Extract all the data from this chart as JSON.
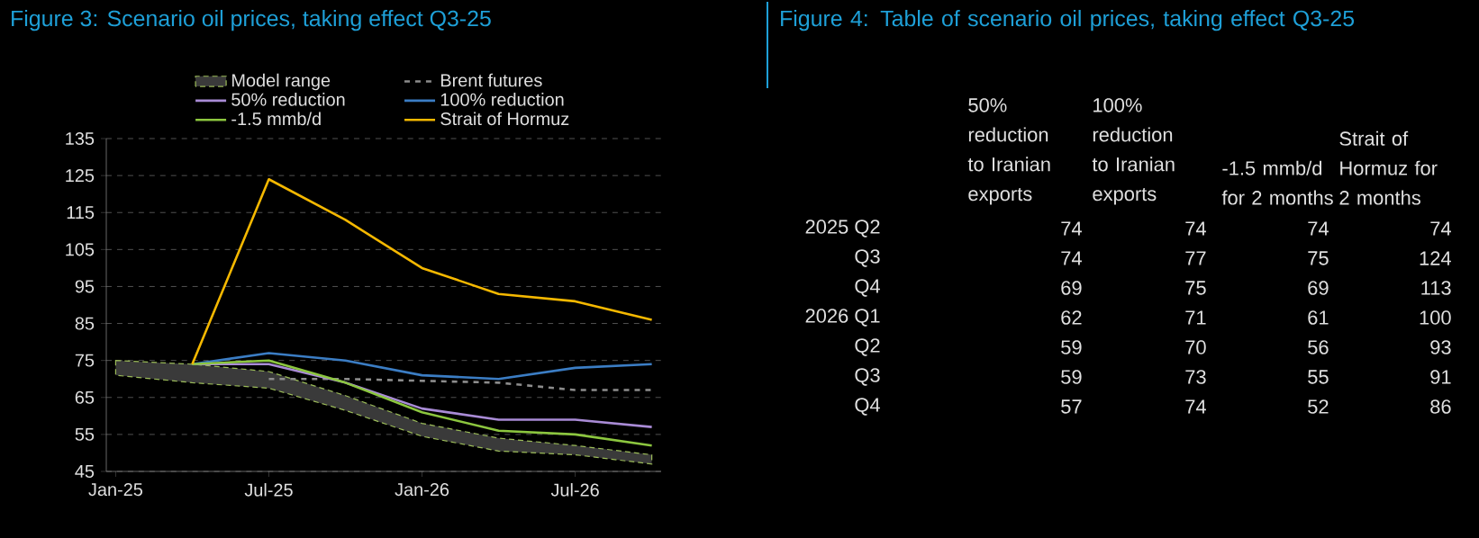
{
  "chart_data": [
    {
      "type": "line",
      "title": "Figure 3: Scenario oil prices, taking effect Q3-25",
      "x": [
        "2025-01",
        "2025-04",
        "2025-07",
        "2025-10",
        "2026-01",
        "2026-04",
        "2026-07",
        "2026-10"
      ],
      "xlim": [
        "2024-12-20",
        "2026-10-12"
      ],
      "xticks": [
        {
          "value": "2025-01",
          "label": "Jan-25"
        },
        {
          "value": "2025-07",
          "label": "Jul-25"
        },
        {
          "value": "2026-01",
          "label": "Jan-26"
        },
        {
          "value": "2026-07",
          "label": "Jul-26"
        }
      ],
      "ylim": [
        45,
        135
      ],
      "yticks": [
        45,
        55,
        65,
        75,
        85,
        95,
        105,
        115,
        125,
        135
      ],
      "grid": "y",
      "legend": "top",
      "series": [
        {
          "name": "Model range",
          "type": "area",
          "color": "#3a3a3a",
          "values": [
            null,
            null,
            null,
            null,
            null,
            null,
            null,
            null
          ],
          "lower": [
            71,
            69,
            67.5,
            61.5,
            54.5,
            50.5,
            49.5,
            47
          ],
          "upper": [
            75,
            74,
            72,
            65.5,
            58,
            54,
            52,
            49.5
          ]
        },
        {
          "name": "Brent futures",
          "type": "line",
          "color": "#8c8c8c",
          "line_style": "dashed",
          "values": [
            null,
            null,
            70,
            70,
            69.5,
            69,
            67,
            67
          ]
        },
        {
          "name": "50% reduction",
          "type": "line",
          "color": "#a98bd6",
          "values": [
            null,
            74,
            74,
            69,
            62,
            59,
            59,
            57
          ]
        },
        {
          "name": "100% reduction",
          "type": "line",
          "color": "#3b7dc4",
          "values": [
            null,
            74,
            77,
            75,
            71,
            70,
            73,
            74
          ]
        },
        {
          "name": "-1.5 mmb/d",
          "type": "line",
          "color": "#8cc63f",
          "values": [
            null,
            74,
            75,
            69,
            61,
            56,
            55,
            52
          ]
        },
        {
          "name": "Strait of Hormuz",
          "type": "line",
          "color": "#f5b800",
          "values": [
            null,
            74,
            124,
            113,
            100,
            93,
            91,
            86
          ]
        }
      ]
    },
    {
      "type": "other",
      "title": "Figure 4: Table of scenario oil prices, taking effect Q3-25",
      "categories": [
        "2025 Q2",
        "Q3",
        "Q4",
        "2026 Q1",
        "Q2",
        "Q3",
        "Q4"
      ],
      "data_labels": true,
      "series": [
        {
          "name": "50% reduction to Iranian exports",
          "values": [
            74,
            74,
            69,
            62,
            59,
            59,
            57
          ]
        },
        {
          "name": "100% reduction to Iranian exports",
          "values": [
            74,
            77,
            75,
            71,
            70,
            73,
            74
          ]
        },
        {
          "name": "-1.5 mmb/d for 2 months",
          "values": [
            74,
            75,
            69,
            61,
            56,
            55,
            52
          ]
        },
        {
          "name": "Strait of Hormuz for 2 months",
          "values": [
            74,
            124,
            113,
            100,
            93,
            91,
            86
          ]
        }
      ]
    }
  ]
}
